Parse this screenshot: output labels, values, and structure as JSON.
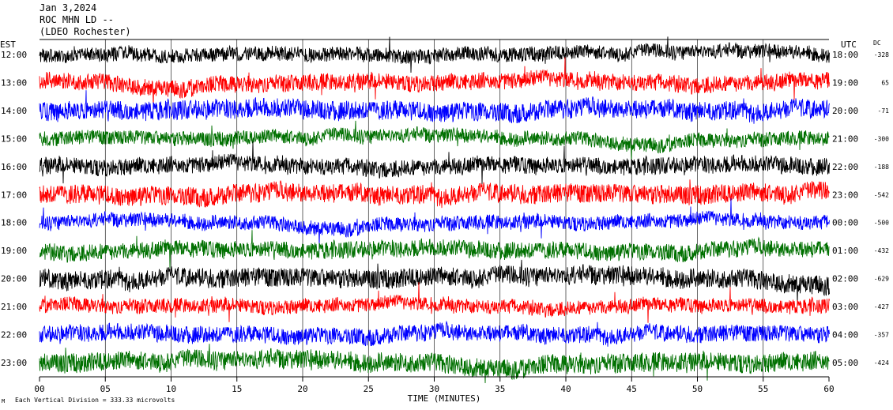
{
  "header": {
    "date": "Jan 3,2024",
    "station": "ROC MHN LD --",
    "location": "(LDEO Rochester)"
  },
  "footer": {
    "scale": "Each Vertical Division =  333.33 microvolts",
    "mark": "M"
  },
  "colors": {
    "traces": [
      "#000000",
      "#ff0000",
      "#0000ff",
      "#007000"
    ],
    "background": "#ffffff"
  },
  "chart_data": {
    "type": "line",
    "title": "",
    "xlabel": "TIME (MINUTES)",
    "ylabel_left": "EST",
    "ylabel_right": "UTC",
    "dc_header": "DC",
    "xlim": [
      0,
      60
    ],
    "x_ticks": [
      "00",
      "05",
      "10",
      "15",
      "20",
      "25",
      "30",
      "35",
      "40",
      "45",
      "50",
      "55",
      "60"
    ],
    "x_tick_values": [
      0,
      5,
      10,
      15,
      20,
      25,
      30,
      35,
      40,
      45,
      50,
      55,
      60
    ],
    "grid_vertical": true,
    "rows": [
      {
        "est": "12:00",
        "utc": "18:00",
        "dc": "-328"
      },
      {
        "est": "13:00",
        "utc": "19:00",
        "dc": "65"
      },
      {
        "est": "14:00",
        "utc": "20:00",
        "dc": "-71"
      },
      {
        "est": "15:00",
        "utc": "21:00",
        "dc": "-300"
      },
      {
        "est": "16:00",
        "utc": "22:00",
        "dc": "-188"
      },
      {
        "est": "17:00",
        "utc": "23:00",
        "dc": "-542"
      },
      {
        "est": "18:00",
        "utc": "00:00",
        "dc": "-500"
      },
      {
        "est": "19:00",
        "utc": "01:00",
        "dc": "-432"
      },
      {
        "est": "20:00",
        "utc": "02:00",
        "dc": "-629"
      },
      {
        "est": "21:00",
        "utc": "03:00",
        "dc": "-427"
      },
      {
        "est": "22:00",
        "utc": "04:00",
        "dc": "-357"
      },
      {
        "est": "23:00",
        "utc": "05:00",
        "dc": "-424"
      }
    ]
  }
}
